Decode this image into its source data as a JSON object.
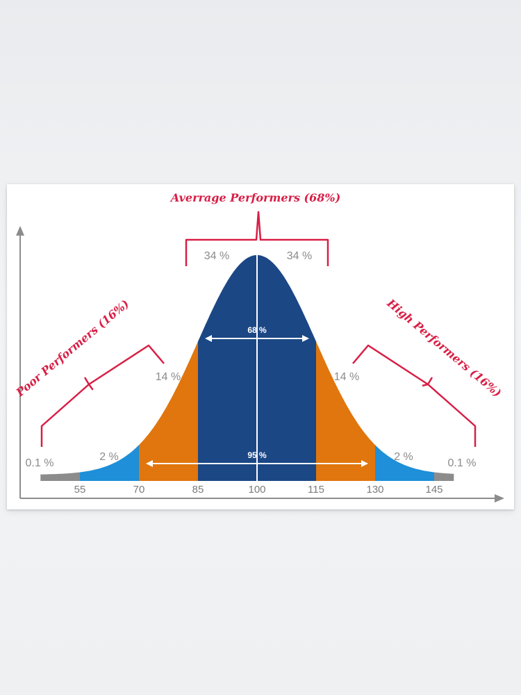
{
  "chart_data": {
    "type": "area",
    "title": "",
    "xlabel": "",
    "ylabel": "",
    "distribution": {
      "mean": 100,
      "sd": 15
    },
    "xlim": [
      45,
      150
    ],
    "ticks": [
      "55",
      "70",
      "85",
      "100",
      "115",
      "130",
      "145"
    ],
    "tick_values": [
      55,
      70,
      85,
      100,
      115,
      130,
      145
    ],
    "regions": [
      {
        "from": 45,
        "to": 55,
        "label": "0.1 %",
        "color": "#8c8c8c"
      },
      {
        "from": 55,
        "to": 70,
        "label": "2 %",
        "color": "#1e8fd8"
      },
      {
        "from": 70,
        "to": 85,
        "label": "14 %",
        "color": "#e0760d"
      },
      {
        "from": 85,
        "to": 100,
        "label": "34 %",
        "color": "#1b4785"
      },
      {
        "from": 100,
        "to": 115,
        "label": "34 %",
        "color": "#1b4785"
      },
      {
        "from": 115,
        "to": 130,
        "label": "14 %",
        "color": "#e0760d"
      },
      {
        "from": 130,
        "to": 145,
        "label": "2 %",
        "color": "#1e8fd8"
      },
      {
        "from": 145,
        "to": 150,
        "label": "0.1 %",
        "color": "#8c8c8c"
      }
    ],
    "spans": [
      {
        "from": 85,
        "to": 115,
        "label": "68 %"
      },
      {
        "from": 70,
        "to": 130,
        "label": "95 %"
      }
    ],
    "groups": [
      {
        "label": "Poor Performers (16%)"
      },
      {
        "label": "Averrage Performers (68%)"
      },
      {
        "label": "High Performers (16%)"
      }
    ]
  },
  "colors": {
    "accent": "#d81e45",
    "axis": "#8c8c8c",
    "text": "#8a8a8a"
  }
}
